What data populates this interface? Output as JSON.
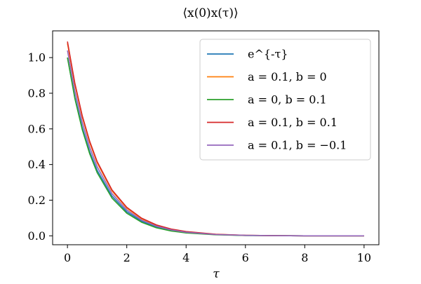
{
  "chart_data": {
    "type": "line",
    "title": "⟨x(0)x(τ)⟩",
    "xlabel": "τ",
    "ylabel": "",
    "xlim": [
      -0.5,
      10.5
    ],
    "ylim": [
      -0.05,
      1.15
    ],
    "xticks": [
      "0",
      "2",
      "4",
      "6",
      "8",
      "10"
    ],
    "yticks": [
      "0.0",
      "0.2",
      "0.4",
      "0.6",
      "0.8",
      "1.0"
    ],
    "grid": false,
    "legend_position": "top-right",
    "series": [
      {
        "name": "e^{-τ}",
        "color": "#1f77b4",
        "x": [
          0,
          0.25,
          0.5,
          0.75,
          1,
          1.5,
          2,
          2.5,
          3,
          3.5,
          4,
          5,
          6,
          7,
          8,
          9,
          10
        ],
        "y": [
          1.0,
          0.779,
          0.607,
          0.472,
          0.368,
          0.223,
          0.135,
          0.082,
          0.05,
          0.03,
          0.018,
          0.007,
          0.002,
          0.001,
          0.0,
          0.0,
          0.0
        ]
      },
      {
        "name": "a = 0.1, b = 0",
        "color": "#ff7f0e",
        "x": [
          0,
          0.25,
          0.5,
          0.75,
          1,
          1.5,
          2,
          2.5,
          3,
          3.5,
          4,
          5,
          6,
          7,
          8,
          9,
          10
        ],
        "y": [
          1.08,
          0.848,
          0.665,
          0.522,
          0.41,
          0.252,
          0.155,
          0.095,
          0.058,
          0.036,
          0.022,
          0.008,
          0.003,
          0.001,
          0.0,
          0.0,
          0.0
        ]
      },
      {
        "name": "a = 0, b = 0.1",
        "color": "#2ca02c",
        "x": [
          0,
          0.25,
          0.5,
          0.75,
          1,
          1.5,
          2,
          2.5,
          3,
          3.5,
          4,
          5,
          6,
          7,
          8,
          9,
          10
        ],
        "y": [
          1.0,
          0.77,
          0.595,
          0.46,
          0.355,
          0.212,
          0.127,
          0.076,
          0.045,
          0.027,
          0.016,
          0.006,
          0.002,
          0.001,
          0.0,
          0.0,
          0.0
        ]
      },
      {
        "name": "a = 0.1, b = 0.1",
        "color": "#d62728",
        "x": [
          0,
          0.25,
          0.5,
          0.75,
          1,
          1.5,
          2,
          2.5,
          3,
          3.5,
          4,
          5,
          6,
          7,
          8,
          9,
          10
        ],
        "y": [
          1.09,
          0.856,
          0.673,
          0.53,
          0.417,
          0.258,
          0.16,
          0.099,
          0.061,
          0.038,
          0.024,
          0.009,
          0.003,
          0.001,
          0.0,
          0.0,
          0.0
        ]
      },
      {
        "name": "a = 0.1, b = −0.1",
        "color": "#9467bd",
        "x": [
          0,
          0.25,
          0.5,
          0.75,
          1,
          1.5,
          2,
          2.5,
          3,
          3.5,
          4,
          5,
          6,
          7,
          8,
          9,
          10
        ],
        "y": [
          1.04,
          0.812,
          0.635,
          0.496,
          0.388,
          0.237,
          0.145,
          0.088,
          0.054,
          0.033,
          0.02,
          0.007,
          0.003,
          0.001,
          0.0,
          0.0,
          0.0
        ]
      }
    ]
  }
}
